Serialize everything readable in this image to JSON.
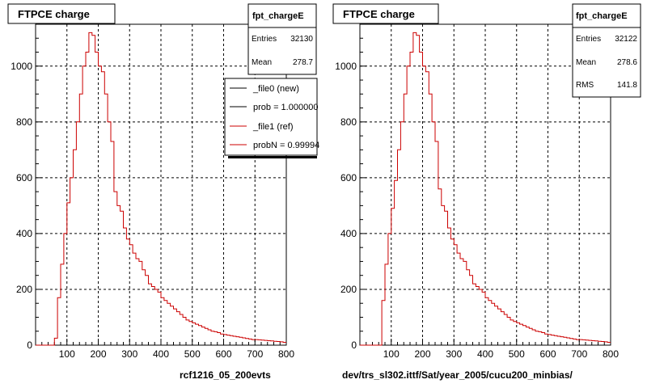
{
  "chart_data": [
    {
      "type": "histogram",
      "title": "FTPCE charge",
      "xlabel": "rcf1216_05_200evts",
      "xlim": [
        0,
        800
      ],
      "ylim": [
        0,
        1150
      ],
      "grid": true,
      "xticks": [
        100,
        200,
        300,
        400,
        500,
        600,
        700,
        800
      ],
      "yticks": [
        0,
        200,
        400,
        600,
        800,
        1000
      ],
      "bin_width": 10,
      "bin_start": 0,
      "stats": {
        "name": "fpt_chargeE",
        "rows": [
          {
            "label": "Entries",
            "value": "32130"
          },
          {
            "label": "Mean",
            "value": "278.7"
          }
        ]
      },
      "legend": [
        {
          "label": "_file0 (new)",
          "color": "#000000"
        },
        {
          "label": "prob = 1.000000",
          "color": "#000000"
        },
        {
          "label": "_file1 (ref)",
          "color": "#cc0000"
        },
        {
          "label": "probN = 0.99994",
          "color": "#cc0000"
        }
      ],
      "series": [
        {
          "color": "#cc0000",
          "values": [
            0,
            0,
            0,
            0,
            0,
            0,
            25,
            170,
            290,
            400,
            510,
            600,
            700,
            800,
            900,
            1000,
            1050,
            1120,
            1110,
            1050,
            1000,
            980,
            900,
            800,
            730,
            550,
            500,
            480,
            420,
            380,
            360,
            330,
            310,
            300,
            270,
            250,
            220,
            210,
            200,
            190,
            170,
            160,
            150,
            140,
            130,
            120,
            110,
            100,
            90,
            85,
            80,
            75,
            70,
            65,
            60,
            55,
            50,
            48,
            45,
            40,
            38,
            36,
            34,
            32,
            30,
            28,
            26,
            24,
            22,
            20,
            20,
            19,
            18,
            17,
            16,
            15,
            14,
            13,
            12,
            10
          ]
        }
      ]
    },
    {
      "type": "histogram",
      "title": "FTPCE charge",
      "xlabel": "dev/trs_sl302.ittf/Sat/year_2005/cucu200_minbias/",
      "xlim": [
        0,
        800
      ],
      "ylim": [
        0,
        1150
      ],
      "grid": true,
      "xticks": [
        100,
        200,
        300,
        400,
        500,
        600,
        700,
        800
      ],
      "yticks": [
        0,
        200,
        400,
        600,
        800,
        1000
      ],
      "bin_width": 10,
      "bin_start": 0,
      "stats": {
        "name": "fpt_chargeE",
        "rows": [
          {
            "label": "Entries",
            "value": "32122"
          },
          {
            "label": "Mean",
            "value": "278.6"
          },
          {
            "label": "RMS",
            "value": "141.8"
          }
        ]
      },
      "legend": [],
      "series": [
        {
          "color": "#cc0000",
          "values": [
            0,
            0,
            0,
            0,
            0,
            0,
            0,
            160,
            290,
            400,
            490,
            590,
            700,
            800,
            900,
            1000,
            1050,
            1120,
            1110,
            1050,
            1000,
            980,
            900,
            800,
            730,
            560,
            500,
            480,
            420,
            380,
            360,
            330,
            310,
            300,
            270,
            250,
            220,
            210,
            200,
            190,
            170,
            160,
            150,
            140,
            130,
            120,
            110,
            100,
            90,
            85,
            80,
            75,
            70,
            65,
            60,
            55,
            50,
            48,
            45,
            40,
            38,
            36,
            34,
            32,
            30,
            28,
            26,
            24,
            22,
            20,
            20,
            19,
            18,
            17,
            16,
            15,
            14,
            13,
            12,
            10
          ]
        }
      ]
    }
  ]
}
